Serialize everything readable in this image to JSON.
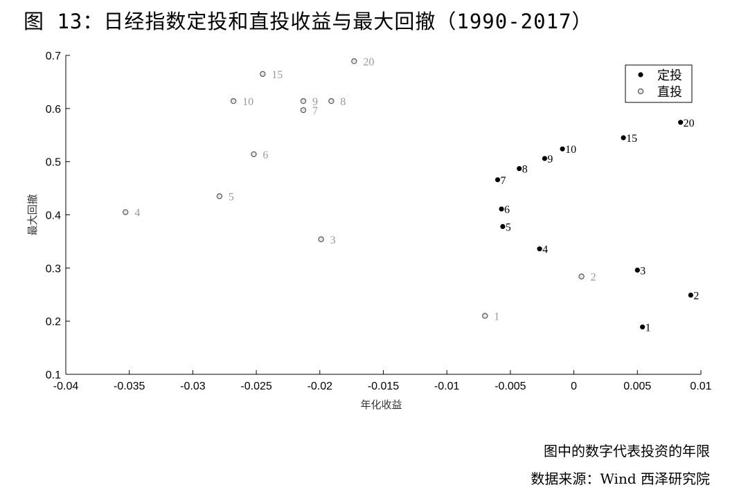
{
  "title": "图 13：日经指数定投和直投收益与最大回撤（1990-2017）",
  "note": "图中的数字代表投资的年限",
  "source": "数据来源：Wind  西泽研究院",
  "chart_data": {
    "type": "scatter",
    "xlabel": "年化收益",
    "ylabel": "最大回撤",
    "xlim": [
      -0.04,
      0.01
    ],
    "ylim": [
      0.1,
      0.7
    ],
    "xticks": [
      "-0.04",
      "-0.035",
      "-0.03",
      "-0.025",
      "-0.02",
      "-0.015",
      "-0.01",
      "-0.005",
      "0",
      "0.005",
      "0.01"
    ],
    "yticks": [
      "0.1",
      "0.2",
      "0.3",
      "0.4",
      "0.5",
      "0.6",
      "0.7"
    ],
    "grid": false,
    "legend_position": "top-right",
    "series": [
      {
        "name": "定投",
        "color": "#000000",
        "marker": "filled-circle",
        "points": [
          {
            "label": "1",
            "x": 0.0054,
            "y": 0.189
          },
          {
            "label": "2",
            "x": 0.0092,
            "y": 0.249
          },
          {
            "label": "3",
            "x": 0.005,
            "y": 0.296
          },
          {
            "label": "4",
            "x": -0.0027,
            "y": 0.336
          },
          {
            "label": "5",
            "x": -0.0056,
            "y": 0.378
          },
          {
            "label": "6",
            "x": -0.0057,
            "y": 0.411
          },
          {
            "label": "7",
            "x": -0.006,
            "y": 0.466
          },
          {
            "label": "8",
            "x": -0.0043,
            "y": 0.487
          },
          {
            "label": "9",
            "x": -0.0023,
            "y": 0.506
          },
          {
            "label": "10",
            "x": -0.0009,
            "y": 0.524
          },
          {
            "label": "15",
            "x": 0.0039,
            "y": 0.545
          },
          {
            "label": "20",
            "x": 0.0084,
            "y": 0.574
          }
        ]
      },
      {
        "name": "直投",
        "color": "#888888",
        "marker": "hollow-circle",
        "points": [
          {
            "label": "1",
            "x": -0.007,
            "y": 0.21
          },
          {
            "label": "2",
            "x": 0.0006,
            "y": 0.284
          },
          {
            "label": "3",
            "x": -0.0199,
            "y": 0.354
          },
          {
            "label": "4",
            "x": -0.0353,
            "y": 0.405
          },
          {
            "label": "5",
            "x": -0.0279,
            "y": 0.435
          },
          {
            "label": "6",
            "x": -0.0252,
            "y": 0.514
          },
          {
            "label": "7",
            "x": -0.0213,
            "y": 0.597
          },
          {
            "label": "8",
            "x": -0.0191,
            "y": 0.614
          },
          {
            "label": "9",
            "x": -0.0213,
            "y": 0.614
          },
          {
            "label": "10",
            "x": -0.0268,
            "y": 0.614
          },
          {
            "label": "15",
            "x": -0.0245,
            "y": 0.665
          },
          {
            "label": "20",
            "x": -0.0173,
            "y": 0.689
          }
        ]
      }
    ]
  }
}
